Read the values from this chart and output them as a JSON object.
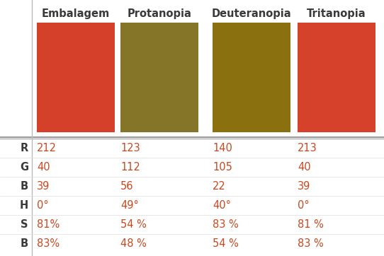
{
  "columns": [
    "Embalagem",
    "Protanopia",
    "Deuteranopia",
    "Tritanopia"
  ],
  "row_labels": [
    "R",
    "G",
    "B",
    "H",
    "S",
    "B"
  ],
  "table_data": [
    [
      "212",
      "123",
      "140",
      "213"
    ],
    [
      "40",
      "112",
      "105",
      "40"
    ],
    [
      "39",
      "56",
      "22",
      "39"
    ],
    [
      "0°",
      "49°",
      "40°",
      "0°"
    ],
    [
      "81%",
      "54 %",
      "83 %",
      "81 %"
    ],
    [
      "83%",
      "48 %",
      "54 %",
      "83 %"
    ]
  ],
  "swatch_colors": [
    "#D4402A",
    "#847528",
    "#8B7010",
    "#D5412B"
  ],
  "header_color": "#3a3a3a",
  "row_label_color": "#3a3a3a",
  "cell_text_color": "#C84820",
  "bg_color": "#ffffff",
  "divider_color": "#999999",
  "vert_line_color": "#bbbbbb",
  "header_fontsize": 10.5,
  "row_label_fontsize": 10.5,
  "cell_fontsize": 10.5
}
